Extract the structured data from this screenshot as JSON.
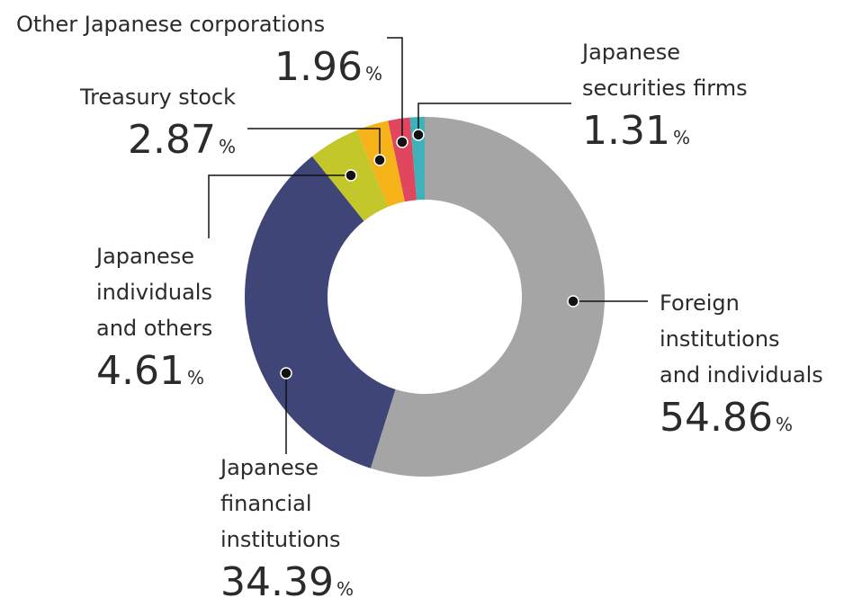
{
  "chart_data": {
    "type": "donut",
    "categories": [
      "Foreign\ninstitutions\nand individuals",
      "Japanese\nfinancial\ninstitutions",
      "Japanese\nindividuals\nand others",
      "Treasury stock",
      "Other Japanese corporations",
      "Japanese\nsecurities firms"
    ],
    "values": [
      54.86,
      34.39,
      4.61,
      2.87,
      1.96,
      1.31
    ],
    "colors": [
      "#a5a5a5",
      "#3f4677",
      "#c3c72a",
      "#f6b219",
      "#e0465e",
      "#3fb2b9"
    ],
    "unit": "%"
  }
}
